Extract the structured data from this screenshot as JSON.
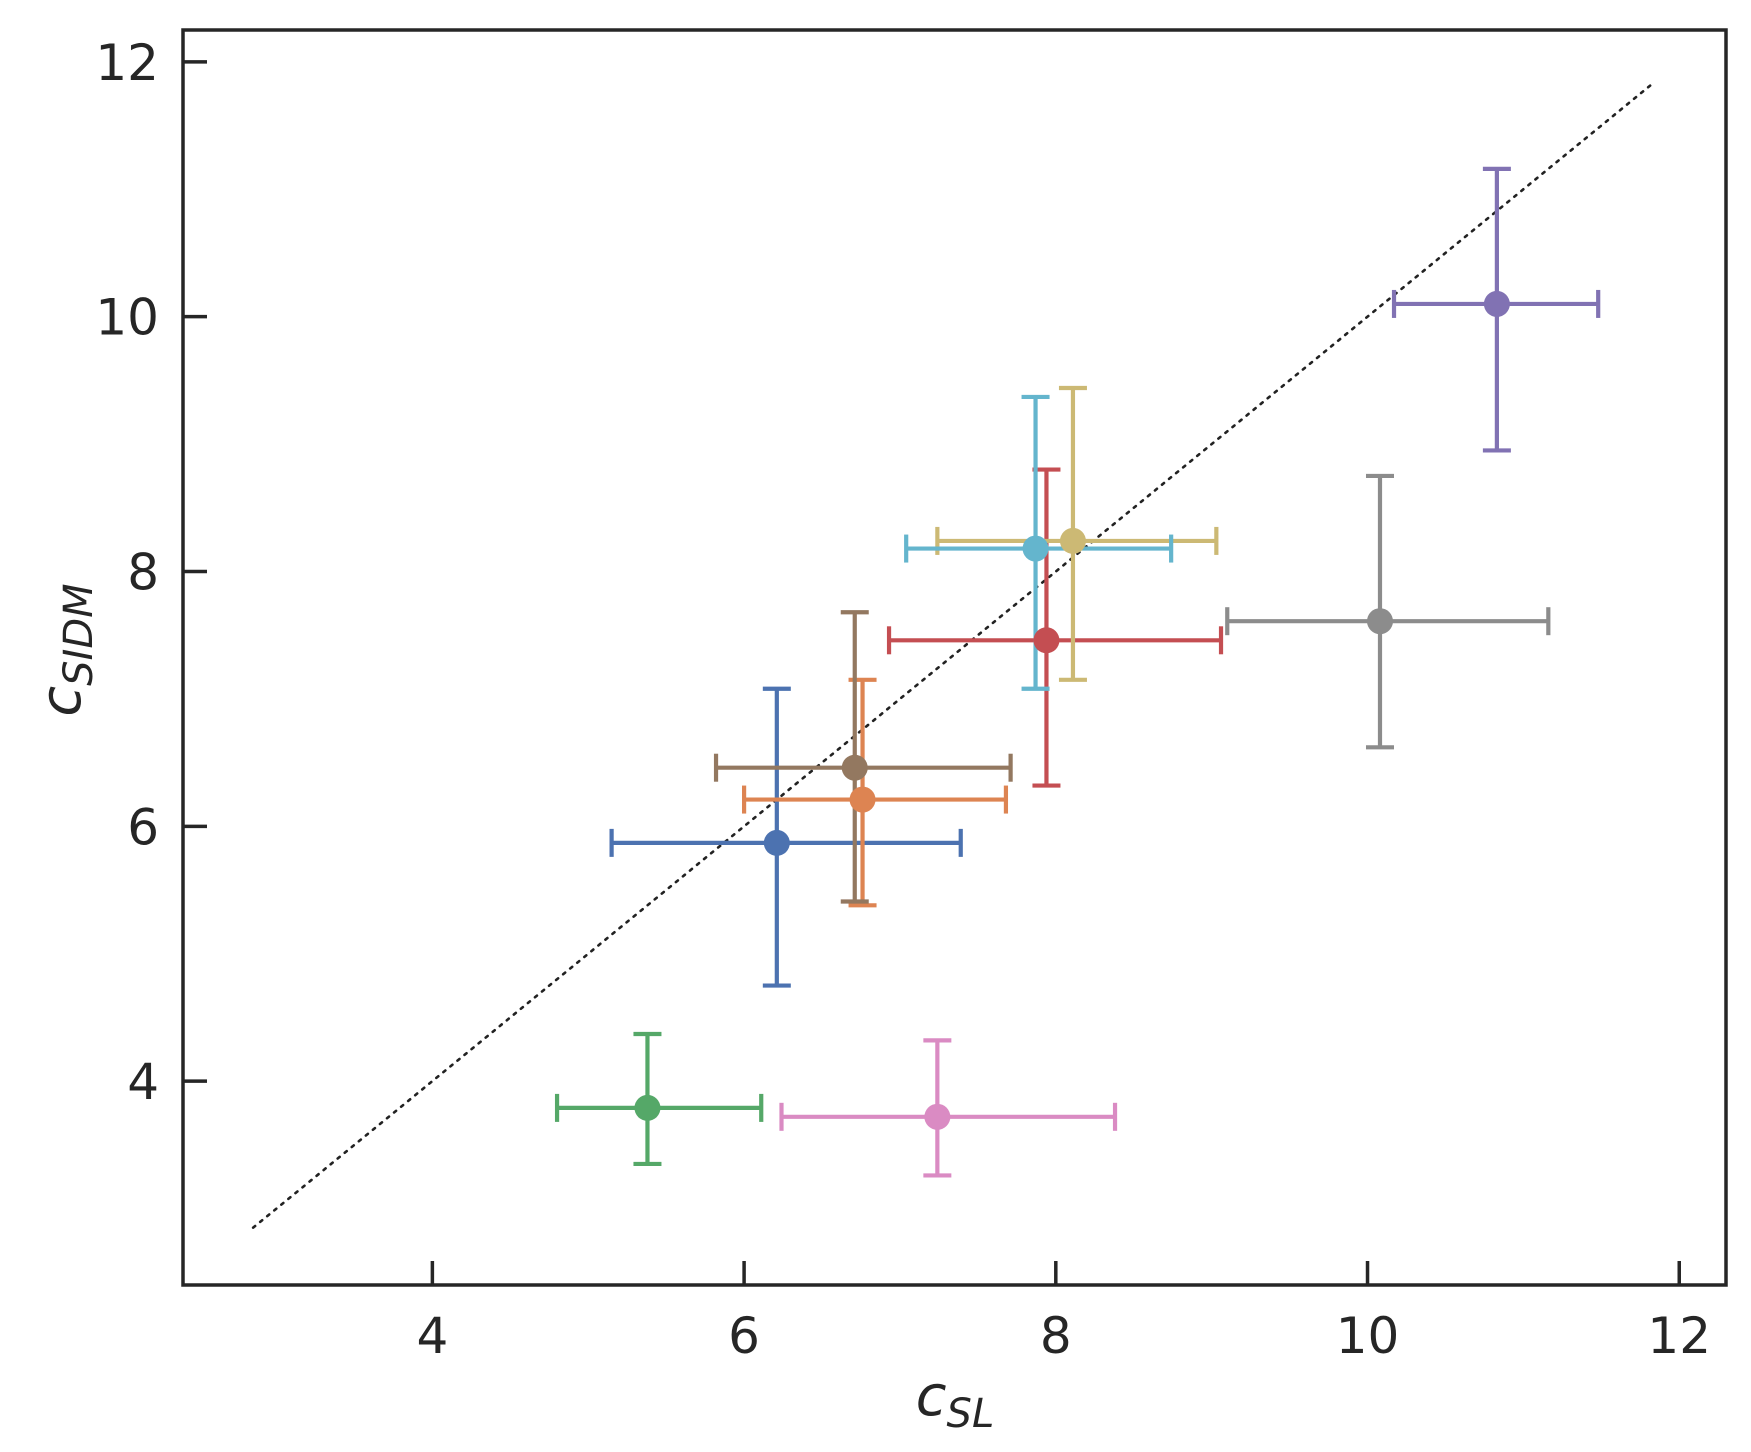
{
  "chart_data": {
    "type": "scatter",
    "title": "",
    "xlabel": {
      "main": "c",
      "sub": "SL"
    },
    "ylabel": {
      "main": "c",
      "sub": "SIDM"
    },
    "xlim": [
      2.4,
      12.3
    ],
    "ylim": [
      2.4,
      12.25
    ],
    "xticks": [
      4,
      6,
      8,
      10,
      12
    ],
    "yticks": [
      4,
      6,
      8,
      10,
      12
    ],
    "xtick_labels": [
      "4",
      "6",
      "8",
      "10",
      "12"
    ],
    "ytick_labels": [
      "4",
      "6",
      "8",
      "10",
      "12"
    ],
    "grid": false,
    "reference_line": {
      "style": "dotted",
      "color": "#222222",
      "x": [
        2.85,
        11.82
      ],
      "y": [
        2.85,
        11.82
      ]
    },
    "points": [
      {
        "x": 6.21,
        "y": 5.87,
        "xerr": [
          1.06,
          1.18
        ],
        "yerr": [
          1.12,
          1.21
        ],
        "color": "#4c72b0"
      },
      {
        "x": 6.76,
        "y": 6.21,
        "xerr": [
          0.76,
          0.92
        ],
        "yerr": [
          0.83,
          0.94
        ],
        "color": "#dd8452"
      },
      {
        "x": 5.38,
        "y": 3.79,
        "xerr": [
          0.58,
          0.73
        ],
        "yerr": [
          0.44,
          0.58
        ],
        "color": "#55a868"
      },
      {
        "x": 7.94,
        "y": 7.46,
        "xerr": [
          1.01,
          1.12
        ],
        "yerr": [
          1.14,
          1.34
        ],
        "color": "#c44e52"
      },
      {
        "x": 10.83,
        "y": 10.1,
        "xerr": [
          0.66,
          0.65
        ],
        "yerr": [
          1.15,
          1.06
        ],
        "color": "#8172b3"
      },
      {
        "x": 6.71,
        "y": 6.46,
        "xerr": [
          0.89,
          1.0
        ],
        "yerr": [
          1.05,
          1.22
        ],
        "color": "#937860"
      },
      {
        "x": 7.24,
        "y": 3.72,
        "xerr": [
          1.0,
          1.14
        ],
        "yerr": [
          0.46,
          0.6
        ],
        "color": "#da8bc3"
      },
      {
        "x": 10.08,
        "y": 7.61,
        "xerr": [
          0.98,
          1.08
        ],
        "yerr": [
          0.99,
          1.14
        ],
        "color": "#8c8c8c"
      },
      {
        "x": 8.11,
        "y": 8.24,
        "xerr": [
          0.87,
          0.92
        ],
        "yerr": [
          1.09,
          1.2
        ],
        "color": "#ccb974"
      },
      {
        "x": 7.87,
        "y": 8.18,
        "xerr": [
          0.83,
          0.87
        ],
        "yerr": [
          1.1,
          1.19
        ],
        "color": "#64b5cd"
      }
    ]
  }
}
